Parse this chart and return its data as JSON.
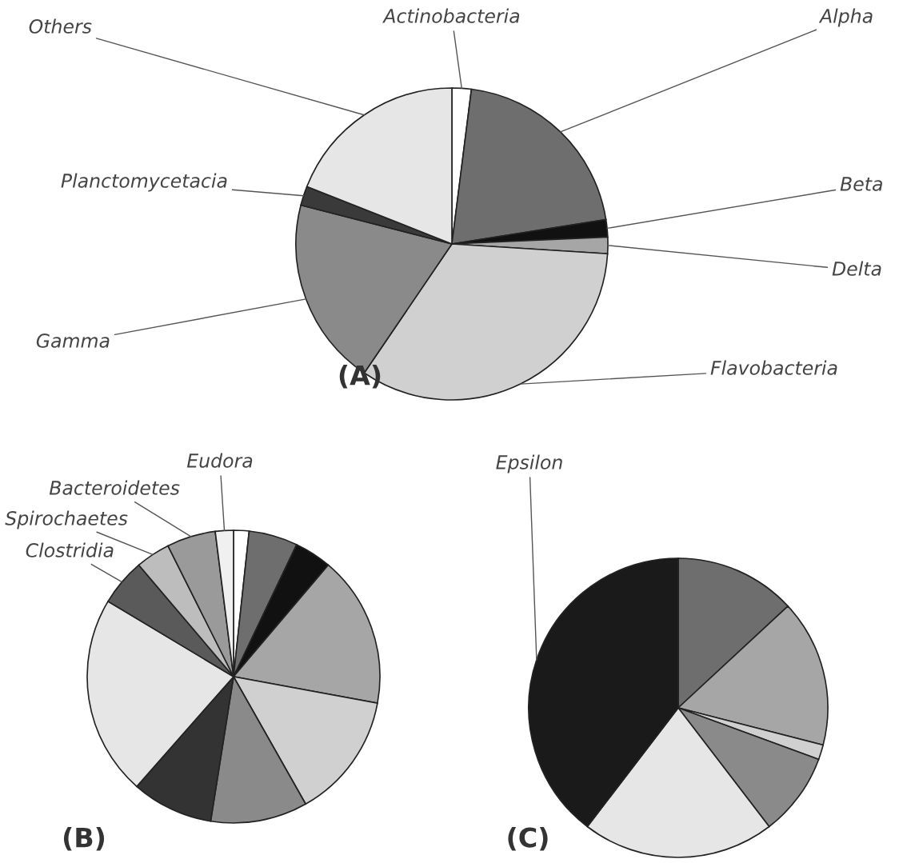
{
  "chart_data": [
    {
      "type": "pie",
      "title": "(A)",
      "categories": [
        "Actinobacteria",
        "Alpha",
        "Beta",
        "Delta",
        "Flavobacteria",
        "Gamma",
        "Planctomycetacia",
        "Others"
      ],
      "values": [
        2,
        20.5,
        1.8,
        1.7,
        33.5,
        19.5,
        2,
        19
      ],
      "colors": [
        "#ffffff",
        "#6e6e6e",
        "#111111",
        "#a6a6a6",
        "#d0d0d0",
        "#8a8a8a",
        "#3a3a3a",
        "#e6e6e6"
      ]
    },
    {
      "type": "pie",
      "title": "(B)",
      "categories": [
        null,
        null,
        null,
        null,
        null,
        null,
        null,
        null,
        "Clostridia",
        "Spirochaetes",
        "Bacteroidetes",
        "Eudora"
      ],
      "values": [
        1.7,
        5.4,
        4.1,
        16.7,
        13.9,
        10.7,
        9.0,
        22.1,
        5.2,
        3.8,
        5.4,
        2.0
      ],
      "colors": [
        "#ffffff",
        "#6e6e6e",
        "#111111",
        "#a6a6a6",
        "#d0d0d0",
        "#8a8a8a",
        "#333333",
        "#e6e6e6",
        "#5a5a5a",
        "#bdbdbd",
        "#9a9a9a",
        "#f0f0f0"
      ]
    },
    {
      "type": "pie",
      "title": "(C)",
      "categories": [
        null,
        null,
        null,
        null,
        null,
        "Epsilon"
      ],
      "values": [
        13.1,
        15.9,
        1.6,
        9.0,
        20.8,
        39.6
      ],
      "colors": [
        "#6e6e6e",
        "#a6a6a6",
        "#d0d0d0",
        "#8a8a8a",
        "#e6e6e6",
        "#1a1a1a"
      ]
    }
  ]
}
